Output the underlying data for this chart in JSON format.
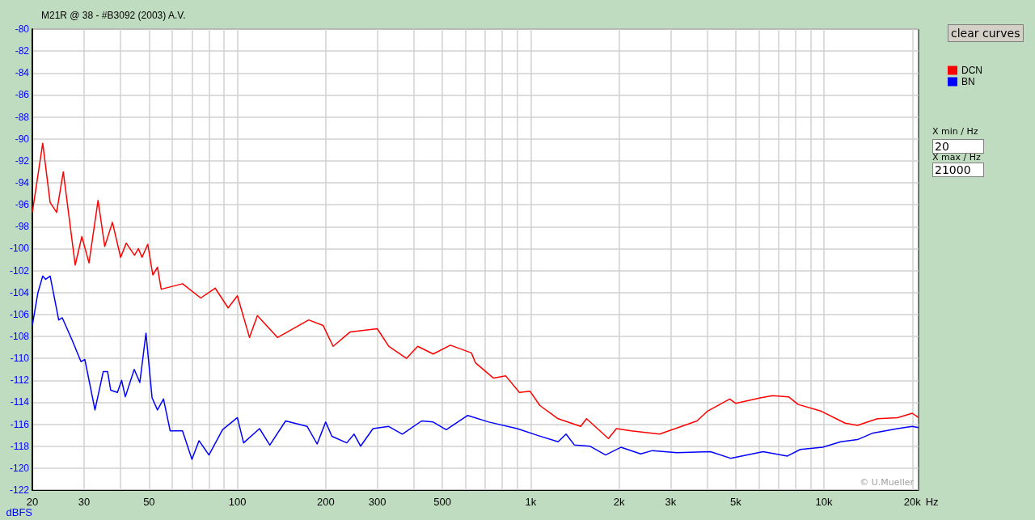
{
  "chart_data": {
    "type": "line",
    "title": "M21R @ 38 - #B3092 (2003) A.V.",
    "ylabel": "dBFS",
    "xlabel": "Hz",
    "annotations": [
      "© U.Mueller",
      "clear curves",
      "X min / Hz",
      "20",
      "X max / Hz",
      "21000"
    ],
    "log": "x",
    "grid": true,
    "legend": "right",
    "marker": "none",
    "line_style": "solid",
    "xlim": [
      20,
      21000
    ],
    "ylim": [
      -122,
      -80
    ],
    "xticks": [
      20,
      30,
      {
        "value": 40,
        "label": null
      },
      50,
      {
        "value": 60,
        "label": null
      },
      {
        "value": 70,
        "label": null
      },
      {
        "value": 80,
        "label": null
      },
      {
        "value": 90,
        "label": null
      },
      100,
      200,
      300,
      {
        "value": 400,
        "label": null
      },
      500,
      {
        "value": 600,
        "label": null
      },
      {
        "value": 700,
        "label": null
      },
      {
        "value": 800,
        "label": null
      },
      {
        "value": 900,
        "label": null
      },
      {
        "value": 1000,
        "label": "1k"
      },
      {
        "value": 2000,
        "label": "2k"
      },
      {
        "value": 3000,
        "label": "3k"
      },
      {
        "value": 4000,
        "label": null
      },
      {
        "value": 5000,
        "label": "5k"
      },
      {
        "value": 6000,
        "label": null
      },
      {
        "value": 7000,
        "label": null
      },
      {
        "value": 8000,
        "label": null
      },
      {
        "value": 9000,
        "label": null
      },
      {
        "value": 10000,
        "label": "10k"
      },
      {
        "value": 20000,
        "label": "20k"
      }
    ],
    "yticks": [
      -80,
      -82,
      -84,
      -86,
      -88,
      -90,
      -92,
      -94,
      -96,
      -98,
      -100,
      -102,
      -104,
      -106,
      -108,
      -110,
      -112,
      -114,
      -116,
      -118,
      -120,
      -122
    ],
    "series": [
      {
        "name": "DCN",
        "color": "#ff0000",
        "x": [
          20,
          21.7,
          23.0,
          24.2,
          25.5,
          28.0,
          29.5,
          31.2,
          33.5,
          35.3,
          37.5,
          40,
          41.8,
          44.6,
          46,
          47.3,
          49.5,
          51.5,
          53.4,
          55,
          65,
          75,
          84,
          93,
          100,
          110,
          117,
          137,
          175,
          196,
          212,
          242,
          300,
          328,
          377,
          412,
          465,
          532,
          628,
          648,
          747,
          822,
          915,
          995,
          1075,
          1240,
          1480,
          1550,
          1840,
          1960,
          2200,
          2750,
          3690,
          4010,
          4770,
          5000,
          6060,
          6670,
          7570,
          8160,
          9750,
          11800,
          13000,
          15200,
          17800,
          20000,
          21000
        ],
        "values": [
          -96.7,
          -90.4,
          -95.8,
          -96.7,
          -93.0,
          -101.5,
          -98.9,
          -101.3,
          -95.6,
          -99.8,
          -97.6,
          -100.8,
          -99.5,
          -100.6,
          -100.0,
          -100.8,
          -99.6,
          -102.4,
          -101.7,
          -103.7,
          -103.2,
          -104.5,
          -103.6,
          -105.4,
          -104.3,
          -108.1,
          -106.1,
          -108.1,
          -106.5,
          -107.0,
          -108.9,
          -107.6,
          -107.3,
          -108.9,
          -110.0,
          -108.9,
          -109.6,
          -108.8,
          -109.5,
          -110.4,
          -111.8,
          -111.6,
          -113.1,
          -113.0,
          -114.3,
          -115.5,
          -116.2,
          -115.5,
          -117.3,
          -116.4,
          -116.6,
          -116.9,
          -115.7,
          -114.8,
          -113.7,
          -114.1,
          -113.6,
          -113.4,
          -113.5,
          -114.2,
          -114.8,
          -115.9,
          -116.1,
          -115.5,
          -115.4,
          -115.0,
          -115.4
        ]
      },
      {
        "name": "BN",
        "color": "#0000ff",
        "x": [
          20,
          20.9,
          21.7,
          22.2,
          23.0,
          24.6,
          25.3,
          27.4,
          29.3,
          30.2,
          32.7,
          34.9,
          36.1,
          37.0,
          39.0,
          40.3,
          41.5,
          44.5,
          46.5,
          48.8,
          51.2,
          53.4,
          56,
          59,
          65,
          70,
          74,
          80,
          89,
          100,
          105,
          119,
          129,
          146,
          173,
          187,
          200,
          210,
          236,
          250,
          263,
          290,
          328,
          365,
          425,
          465,
          515,
          610,
          720,
          900,
          1050,
          1240,
          1320,
          1410,
          1590,
          1800,
          2030,
          2370,
          2600,
          3150,
          4100,
          4800,
          6200,
          7500,
          8300,
          9900,
          11400,
          13000,
          14700,
          17800,
          20000,
          21000
        ],
        "values": [
          -107.0,
          -104.0,
          -102.5,
          -102.8,
          -102.5,
          -106.5,
          -106.3,
          -108.4,
          -110.3,
          -110.1,
          -114.7,
          -111.2,
          -111.2,
          -112.9,
          -113.1,
          -112.0,
          -113.5,
          -111.0,
          -112.2,
          -107.7,
          -113.6,
          -114.7,
          -113.7,
          -116.6,
          -116.6,
          -119.2,
          -117.5,
          -118.8,
          -116.5,
          -115.4,
          -117.7,
          -116.4,
          -117.9,
          -115.7,
          -116.2,
          -117.8,
          -115.8,
          -117.1,
          -117.7,
          -116.9,
          -118.0,
          -116.4,
          -116.2,
          -116.9,
          -115.7,
          -115.8,
          -116.5,
          -115.2,
          -115.8,
          -116.4,
          -117.0,
          -117.6,
          -116.9,
          -117.9,
          -118.0,
          -118.8,
          -118.1,
          -118.7,
          -118.4,
          -118.6,
          -118.5,
          -119.1,
          -118.5,
          -118.9,
          -118.3,
          -118.1,
          -117.6,
          -117.4,
          -116.8,
          -116.4,
          -116.2,
          -116.3
        ]
      }
    ]
  }
}
